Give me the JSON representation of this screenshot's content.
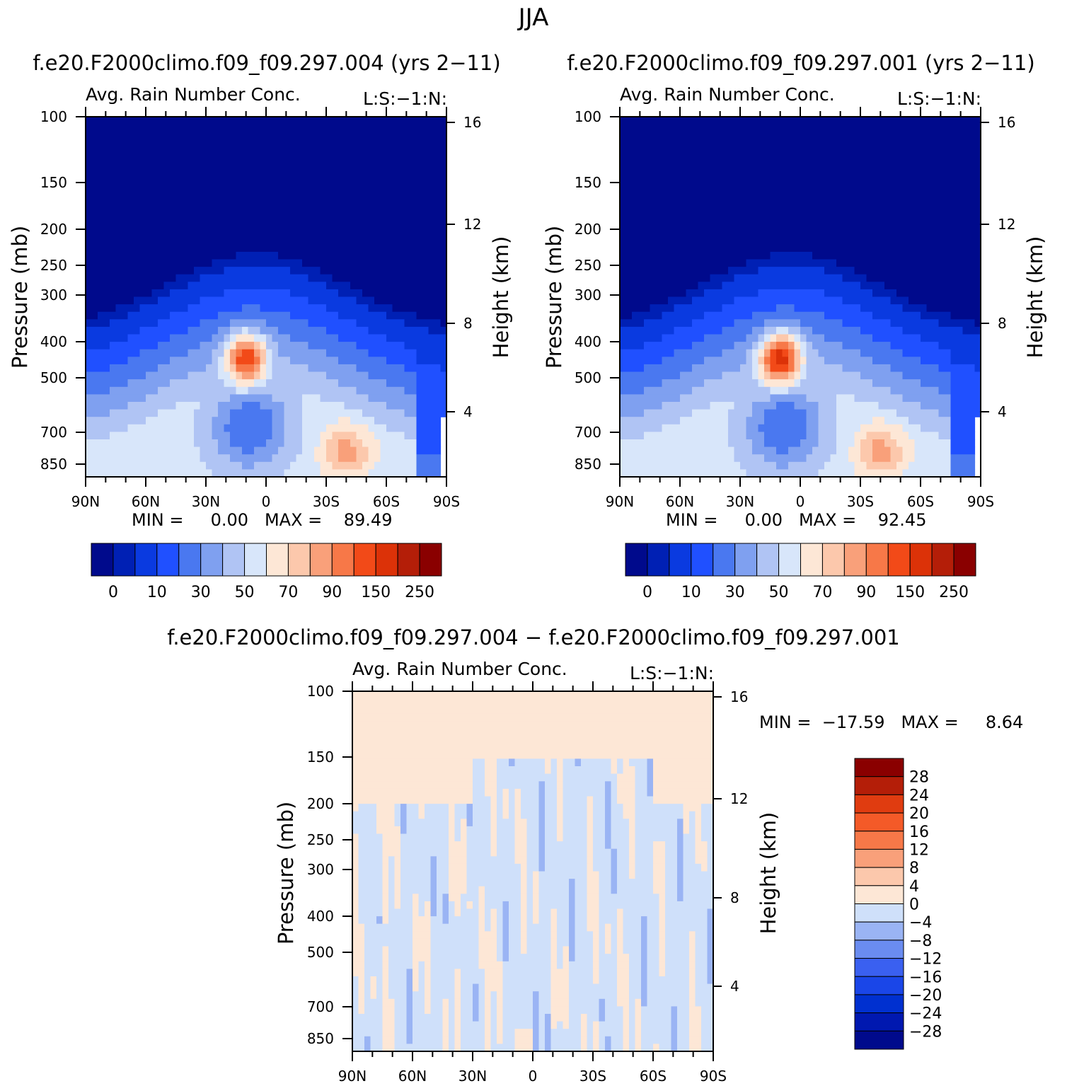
{
  "page": {
    "season": "JJA",
    "colors": {
      "seq": [
        "#000a8c",
        "#0020b4",
        "#0a3ae0",
        "#2050ff",
        "#4a78f0",
        "#7fa0f0",
        "#b0c4f4",
        "#d8e6fa",
        "#fde7d6",
        "#fcc8ac",
        "#f9a07a",
        "#f77848",
        "#f24a18",
        "#dc3208",
        "#b41e08",
        "#8a0000"
      ],
      "div": [
        "#000a8c",
        "#0018b0",
        "#0030d0",
        "#1a46e8",
        "#3a60f0",
        "#6a8cf0",
        "#9ab4f4",
        "#cfe0fa",
        "#fde7d6",
        "#fcc8ac",
        "#f9a07a",
        "#f77848",
        "#f45a28",
        "#e03c10",
        "#b41e08",
        "#8a0000"
      ]
    }
  },
  "chart_data": [
    {
      "id": "panel-a",
      "type": "heatmap",
      "case_title": "f.e20.F2000climo.f09_f09.297.004 (yrs 2−11)",
      "title": "Avg. Rain Number Conc.",
      "right_label": "L:S:−1:N:",
      "ylabel": "Pressure (mb)",
      "y2label": "Height (km)",
      "x_ticks": [
        "90N",
        "60N",
        "30N",
        "0",
        "30S",
        "60S",
        "90S"
      ],
      "y_ticks": [
        100,
        150,
        200,
        250,
        300,
        400,
        500,
        700,
        850
      ],
      "y2_ticks": [
        16,
        12,
        8,
        4
      ],
      "min_max": "MIN =     0.00   MAX =    89.49",
      "colorbar_labels": [
        "0",
        "10",
        "30",
        "50",
        "70",
        "90",
        "150",
        "250"
      ],
      "levels": [
        0,
        5,
        10,
        20,
        30,
        40,
        50,
        60,
        70,
        80,
        90,
        100,
        150,
        200,
        250
      ]
    },
    {
      "id": "panel-b",
      "type": "heatmap",
      "case_title": "f.e20.F2000climo.f09_f09.297.001 (yrs 2−11)",
      "title": "Avg. Rain Number Conc.",
      "right_label": "L:S:−1:N:",
      "ylabel": "Pressure (mb)",
      "y2label": "Height (km)",
      "x_ticks": [
        "90N",
        "60N",
        "30N",
        "0",
        "30S",
        "60S",
        "90S"
      ],
      "y_ticks": [
        100,
        150,
        200,
        250,
        300,
        400,
        500,
        700,
        850
      ],
      "y2_ticks": [
        16,
        12,
        8,
        4
      ],
      "min_max": "MIN =     0.00   MAX =    92.45",
      "colorbar_labels": [
        "0",
        "10",
        "30",
        "50",
        "70",
        "90",
        "150",
        "250"
      ],
      "levels": [
        0,
        5,
        10,
        20,
        30,
        40,
        50,
        60,
        70,
        80,
        90,
        100,
        150,
        200,
        250
      ]
    },
    {
      "id": "panel-diff",
      "type": "heatmap",
      "case_title": "f.e20.F2000climo.f09_f09.297.004 − f.e20.F2000climo.f09_f09.297.001",
      "title": "Avg. Rain Number Conc.",
      "right_label": "L:S:−1:N:",
      "ylabel": "Pressure (mb)",
      "y2label": "Height (km)",
      "x_ticks": [
        "90N",
        "60N",
        "30N",
        "0",
        "30S",
        "60S",
        "90S"
      ],
      "y_ticks": [
        100,
        150,
        200,
        250,
        300,
        400,
        500,
        700,
        850
      ],
      "y2_ticks": [
        16,
        12,
        8,
        4
      ],
      "min_max": "MIN =  −17.59   MAX =     8.64",
      "colorbar_labels": [
        "28",
        "24",
        "20",
        "16",
        "12",
        "8",
        "4",
        "0",
        "−4",
        "−8",
        "−12",
        "−16",
        "−20",
        "−24",
        "−28"
      ],
      "levels": [
        -28,
        -24,
        -20,
        -16,
        -12,
        -8,
        -4,
        0,
        4,
        8,
        12,
        16,
        20,
        24,
        28
      ]
    }
  ]
}
